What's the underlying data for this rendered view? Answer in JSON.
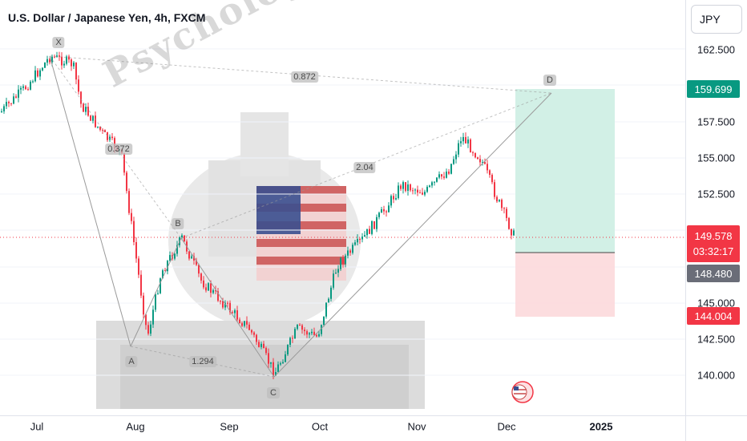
{
  "header": {
    "title": "U.S. Dollar / Japanese Yen, 4h, FXCM"
  },
  "currency_button": {
    "label": "JPY"
  },
  "price_axis": {
    "ticks": [
      "162.500",
      "157.500",
      "155.000",
      "152.500",
      "145.000",
      "142.500",
      "140.000"
    ],
    "badges": {
      "target": "159.699",
      "current_price": "149.578",
      "countdown": "03:32:17",
      "entry": "148.480",
      "stop": "144.004"
    }
  },
  "time_axis": {
    "labels": [
      "Jul",
      "Aug",
      "Sep",
      "Oct",
      "Nov",
      "Dec",
      "2025"
    ]
  },
  "pattern": {
    "points": {
      "x": "X",
      "a": "A",
      "b": "B",
      "c": "C",
      "d": "D"
    },
    "ratios": {
      "xb": "0.372",
      "ac": "1.294",
      "bd": "2.04",
      "xd": "0.872"
    }
  },
  "watermark": {
    "text": "Psychological trader"
  },
  "colors": {
    "up": "#089981",
    "down": "#f23645",
    "target_zone": "#cdeee3",
    "stop_zone": "#fcd9dc",
    "pattern_line": "#9a9a9a"
  },
  "icons": {
    "event_flag": "us-flag-icon"
  }
}
